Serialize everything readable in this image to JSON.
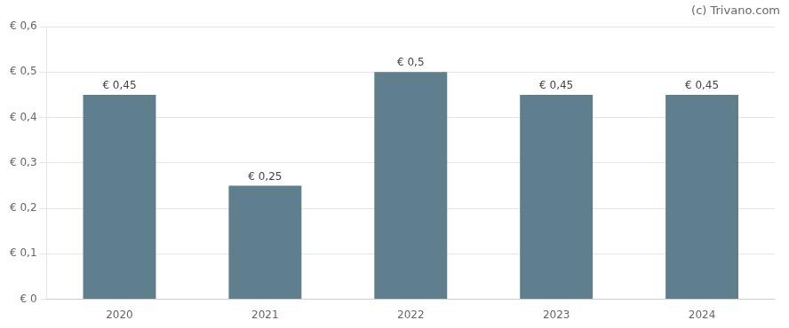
{
  "chart_data": {
    "type": "bar",
    "categories": [
      "2020",
      "2021",
      "2022",
      "2023",
      "2024"
    ],
    "values": [
      0.45,
      0.25,
      0.5,
      0.45,
      0.45
    ],
    "value_labels": [
      "€ 0,45",
      "€ 0,25",
      "€ 0,5",
      "€ 0,45",
      "€ 0,45"
    ],
    "color": "#5f7f8e",
    "ylim": [
      0,
      0.6
    ],
    "yticks": [
      {
        "value": 0.0,
        "label": "€ 0"
      },
      {
        "value": 0.1,
        "label": "€ 0,1"
      },
      {
        "value": 0.2,
        "label": "€ 0,2"
      },
      {
        "value": 0.3,
        "label": "€ 0,3"
      },
      {
        "value": 0.4,
        "label": "€ 0,4"
      },
      {
        "value": 0.5,
        "label": "€ 0,5"
      },
      {
        "value": 0.6,
        "label": "€ 0,6"
      }
    ],
    "grid": true,
    "data_labels": true,
    "annotations": [
      "(c) Trivano.com"
    ]
  }
}
